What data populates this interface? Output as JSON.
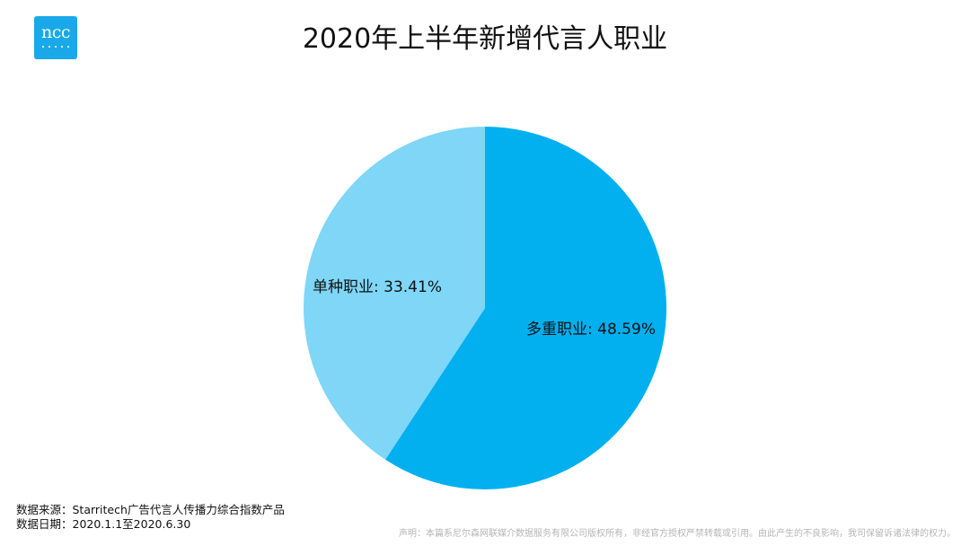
{
  "logo": {
    "text": "ncc",
    "color": "#1aa9e8"
  },
  "chart_data": {
    "type": "pie",
    "title": "2020年上半年新增代言人职业",
    "slices": [
      {
        "label": "多重职业: 48.59%",
        "value": 48.59,
        "color": "#02b0f0"
      },
      {
        "label": "单种职业: 33.41%",
        "value": 33.41,
        "color": "#7fd6f7"
      }
    ]
  },
  "footer": {
    "source": "数据来源：Starritech广告代言人传播力综合指数产品",
    "date": "数据日期：2020.1.1至2020.6.30"
  },
  "disclaimer": "声明：本篇系尼尔森网联媒介数据服务有限公司版权所有，非经官方授权严禁转载或引用。由此产生的不良影响，我司保留诉诸法律的权力。"
}
